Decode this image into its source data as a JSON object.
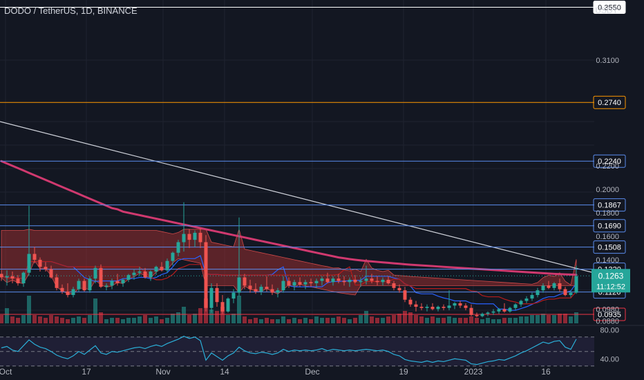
{
  "header": {
    "title": "DODO / TetherUS, 1D, BINANCE"
  },
  "currency": "USDT",
  "chart_data": {
    "type": "candlestick",
    "y_ticks": [
      "0.3100",
      "0.2200",
      "0.2000",
      "0.1800",
      "0.1600",
      "0.1400",
      "0.0980",
      "0.0880"
    ],
    "x_ticks": [
      "Oct",
      "17",
      "Nov",
      "14",
      "Dec",
      "19",
      "2023",
      "16"
    ],
    "levels": [
      {
        "value": 0.355,
        "label": "0.3550",
        "color": "#ffffff"
      },
      {
        "value": 0.274,
        "label": "0.2740",
        "color": "#ff9800"
      },
      {
        "value": 0.224,
        "label": "0.2240",
        "color": "#5b8def"
      },
      {
        "value": 0.1867,
        "label": "0.1867",
        "color": "#5b8def"
      },
      {
        "value": 0.169,
        "label": "0.1690",
        "color": "#5b8def"
      },
      {
        "value": 0.1508,
        "label": "0.1508",
        "color": "#5b8def"
      },
      {
        "value": 0.132,
        "label": "0.1320",
        "color": "#5b8def"
      },
      {
        "value": 0.1126,
        "label": "0.1126",
        "color": "#5b8def"
      },
      {
        "value": 0.0935,
        "label": "0.0935",
        "color": "#f23645"
      }
    ],
    "price": {
      "value": 0.1263,
      "label": "0.1263",
      "countdown": "11:12:52",
      "color": "#26a69a"
    },
    "rsi": {
      "ticks": [
        "80.00",
        "40.00"
      ]
    },
    "candles": [
      [
        0.128,
        0.131,
        0.122,
        0.125
      ],
      [
        0.125,
        0.131,
        0.118,
        0.126
      ],
      [
        0.126,
        0.13,
        0.12,
        0.124
      ],
      [
        0.124,
        0.127,
        0.118,
        0.12
      ],
      [
        0.12,
        0.13,
        0.117,
        0.129
      ],
      [
        0.129,
        0.186,
        0.126,
        0.145
      ],
      [
        0.145,
        0.151,
        0.137,
        0.14
      ],
      [
        0.14,
        0.142,
        0.13,
        0.134
      ],
      [
        0.134,
        0.138,
        0.13,
        0.132
      ],
      [
        0.132,
        0.135,
        0.124,
        0.125
      ],
      [
        0.125,
        0.128,
        0.114,
        0.116
      ],
      [
        0.116,
        0.119,
        0.111,
        0.113
      ],
      [
        0.113,
        0.12,
        0.108,
        0.11
      ],
      [
        0.11,
        0.117,
        0.108,
        0.115
      ],
      [
        0.115,
        0.124,
        0.113,
        0.122
      ],
      [
        0.122,
        0.124,
        0.113,
        0.114
      ],
      [
        0.114,
        0.126,
        0.112,
        0.124
      ],
      [
        0.124,
        0.135,
        0.12,
        0.133
      ],
      [
        0.133,
        0.136,
        0.116,
        0.117
      ],
      [
        0.117,
        0.12,
        0.114,
        0.118
      ],
      [
        0.118,
        0.124,
        0.115,
        0.122
      ],
      [
        0.122,
        0.128,
        0.118,
        0.12
      ],
      [
        0.12,
        0.124,
        0.117,
        0.123
      ],
      [
        0.123,
        0.128,
        0.121,
        0.127
      ],
      [
        0.127,
        0.132,
        0.123,
        0.129
      ],
      [
        0.129,
        0.134,
        0.126,
        0.13
      ],
      [
        0.13,
        0.133,
        0.124,
        0.125
      ],
      [
        0.125,
        0.131,
        0.122,
        0.13
      ],
      [
        0.13,
        0.135,
        0.127,
        0.134
      ],
      [
        0.134,
        0.138,
        0.13,
        0.131
      ],
      [
        0.131,
        0.141,
        0.129,
        0.139
      ],
      [
        0.139,
        0.147,
        0.135,
        0.146
      ],
      [
        0.146,
        0.157,
        0.143,
        0.155
      ],
      [
        0.155,
        0.189,
        0.147,
        0.162
      ],
      [
        0.162,
        0.166,
        0.15,
        0.157
      ],
      [
        0.157,
        0.165,
        0.151,
        0.163
      ],
      [
        0.163,
        0.167,
        0.15,
        0.155
      ],
      [
        0.155,
        0.161,
        0.096,
        0.099
      ],
      [
        0.099,
        0.12,
        0.095,
        0.116
      ],
      [
        0.116,
        0.12,
        0.1,
        0.104
      ],
      [
        0.104,
        0.11,
        0.094,
        0.096
      ],
      [
        0.096,
        0.108,
        0.095,
        0.107
      ],
      [
        0.107,
        0.115,
        0.103,
        0.112
      ],
      [
        0.112,
        0.176,
        0.109,
        0.125
      ],
      [
        0.125,
        0.128,
        0.115,
        0.118
      ],
      [
        0.118,
        0.123,
        0.112,
        0.115
      ],
      [
        0.115,
        0.12,
        0.111,
        0.113
      ],
      [
        0.113,
        0.119,
        0.11,
        0.117
      ],
      [
        0.117,
        0.126,
        0.113,
        0.115
      ],
      [
        0.115,
        0.119,
        0.11,
        0.112
      ],
      [
        0.112,
        0.116,
        0.108,
        0.114
      ],
      [
        0.114,
        0.126,
        0.112,
        0.122
      ],
      [
        0.122,
        0.125,
        0.116,
        0.118
      ],
      [
        0.118,
        0.123,
        0.114,
        0.121
      ],
      [
        0.121,
        0.125,
        0.117,
        0.119
      ],
      [
        0.119,
        0.123,
        0.115,
        0.121
      ],
      [
        0.121,
        0.124,
        0.117,
        0.12
      ],
      [
        0.12,
        0.124,
        0.116,
        0.122
      ],
      [
        0.122,
        0.126,
        0.118,
        0.124
      ],
      [
        0.124,
        0.129,
        0.12,
        0.121
      ],
      [
        0.121,
        0.126,
        0.118,
        0.124
      ],
      [
        0.124,
        0.128,
        0.12,
        0.122
      ],
      [
        0.122,
        0.126,
        0.118,
        0.121
      ],
      [
        0.121,
        0.125,
        0.117,
        0.123
      ],
      [
        0.123,
        0.127,
        0.12,
        0.121
      ],
      [
        0.121,
        0.125,
        0.117,
        0.122
      ],
      [
        0.122,
        0.135,
        0.119,
        0.124
      ],
      [
        0.124,
        0.128,
        0.12,
        0.122
      ],
      [
        0.122,
        0.126,
        0.118,
        0.121
      ],
      [
        0.121,
        0.125,
        0.118,
        0.123
      ],
      [
        0.123,
        0.126,
        0.119,
        0.12
      ],
      [
        0.12,
        0.122,
        0.114,
        0.116
      ],
      [
        0.116,
        0.119,
        0.112,
        0.114
      ],
      [
        0.114,
        0.117,
        0.104,
        0.106
      ],
      [
        0.106,
        0.108,
        0.1,
        0.102
      ],
      [
        0.102,
        0.105,
        0.096,
        0.1
      ],
      [
        0.1,
        0.103,
        0.097,
        0.099
      ],
      [
        0.099,
        0.102,
        0.096,
        0.1
      ],
      [
        0.1,
        0.103,
        0.097,
        0.098
      ],
      [
        0.098,
        0.101,
        0.096,
        0.1
      ],
      [
        0.1,
        0.102,
        0.097,
        0.099
      ],
      [
        0.099,
        0.114,
        0.097,
        0.101
      ],
      [
        0.101,
        0.104,
        0.098,
        0.103
      ],
      [
        0.103,
        0.105,
        0.099,
        0.101
      ],
      [
        0.101,
        0.103,
        0.097,
        0.099
      ],
      [
        0.099,
        0.102,
        0.092,
        0.093
      ],
      [
        0.093,
        0.095,
        0.091,
        0.092
      ],
      [
        0.092,
        0.095,
        0.091,
        0.094
      ],
      [
        0.094,
        0.096,
        0.092,
        0.095
      ],
      [
        0.095,
        0.098,
        0.093,
        0.096
      ],
      [
        0.096,
        0.099,
        0.094,
        0.098
      ],
      [
        0.098,
        0.103,
        0.095,
        0.096
      ],
      [
        0.096,
        0.1,
        0.095,
        0.099
      ],
      [
        0.099,
        0.103,
        0.097,
        0.102
      ],
      [
        0.102,
        0.106,
        0.1,
        0.105
      ],
      [
        0.105,
        0.109,
        0.103,
        0.107
      ],
      [
        0.107,
        0.112,
        0.105,
        0.11
      ],
      [
        0.11,
        0.116,
        0.108,
        0.114
      ],
      [
        0.114,
        0.12,
        0.112,
        0.118
      ],
      [
        0.118,
        0.122,
        0.115,
        0.116
      ],
      [
        0.116,
        0.121,
        0.114,
        0.12
      ],
      [
        0.12,
        0.124,
        0.113,
        0.115
      ],
      [
        0.115,
        0.117,
        0.109,
        0.11
      ],
      [
        0.11,
        0.114,
        0.108,
        0.112
      ],
      [
        0.112,
        0.135,
        0.111,
        0.126
      ]
    ],
    "volume": [
      0.3,
      0.55,
      0.25,
      0.2,
      0.3,
      1.0,
      0.3,
      0.25,
      0.2,
      0.3,
      0.25,
      0.2,
      0.15,
      0.2,
      0.25,
      0.2,
      0.3,
      0.9,
      0.4,
      0.15,
      0.2,
      0.2,
      0.15,
      0.2,
      0.2,
      0.25,
      0.3,
      0.2,
      0.25,
      0.15,
      0.2,
      0.35,
      0.4,
      0.6,
      0.3,
      0.35,
      0.55,
      0.9,
      0.5,
      0.45,
      0.6,
      0.3,
      0.35,
      1.0,
      0.25,
      0.15,
      0.2,
      0.15,
      0.2,
      0.15,
      0.15,
      0.25,
      0.15,
      0.2,
      0.15,
      0.2,
      0.15,
      0.25,
      0.2,
      0.2,
      0.2,
      0.25,
      0.2,
      0.15,
      0.2,
      0.3,
      0.45,
      0.25,
      0.2,
      0.2,
      0.25,
      0.3,
      0.35,
      0.45,
      0.4,
      0.3,
      0.25,
      0.2,
      0.25,
      0.2,
      0.2,
      0.25,
      0.2,
      0.2,
      0.2,
      0.25,
      0.2,
      0.15,
      0.2,
      0.15,
      0.15,
      0.2,
      0.2,
      0.2,
      0.25,
      0.25,
      0.3,
      0.3,
      0.35,
      0.3,
      0.3,
      0.35,
      0.35,
      0.25,
      0.4
    ],
    "ma": [
      0.224,
      0.222,
      0.22,
      0.218,
      0.216,
      0.214,
      0.212,
      0.21,
      0.208,
      0.206,
      0.204,
      0.202,
      0.2,
      0.198,
      0.196,
      0.194,
      0.192,
      0.19,
      0.188,
      0.186,
      0.184,
      0.183,
      0.181,
      0.18,
      0.179,
      0.178,
      0.177,
      0.176,
      0.175,
      0.174,
      0.173,
      0.172,
      0.171,
      0.17,
      0.169,
      0.168,
      0.167,
      0.166,
      0.165,
      0.164,
      0.163,
      0.162,
      0.161,
      0.16,
      0.159,
      0.158,
      0.157,
      0.156,
      0.155,
      0.154,
      0.153,
      0.152,
      0.151,
      0.15,
      0.149,
      0.148,
      0.147,
      0.146,
      0.145,
      0.144,
      0.143,
      0.142,
      0.1413,
      0.1406,
      0.14,
      0.1395,
      0.139,
      0.1386,
      0.1382,
      0.1378,
      0.1374,
      0.137,
      0.1366,
      0.1362,
      0.1358,
      0.1355,
      0.1352,
      0.1349,
      0.1346,
      0.1343,
      0.134,
      0.1337,
      0.1334,
      0.1331,
      0.1328,
      0.1325,
      0.1322,
      0.1319,
      0.1316,
      0.1313,
      0.131,
      0.1307,
      0.1304,
      0.1301,
      0.1298,
      0.1295,
      0.1292,
      0.1289,
      0.1286,
      0.1283,
      0.128,
      0.1278,
      0.1276,
      0.1274,
      0.1272
    ],
    "rsi_values": [
      55,
      57,
      52,
      50,
      58,
      66,
      60,
      56,
      54,
      50,
      45,
      42,
      40,
      44,
      50,
      46,
      52,
      58,
      48,
      46,
      50,
      49,
      51,
      53,
      55,
      56,
      54,
      57,
      59,
      57,
      61,
      64,
      67,
      71,
      68,
      70,
      65,
      38,
      48,
      43,
      38,
      44,
      48,
      56,
      51,
      48,
      47,
      49,
      48,
      46,
      48,
      53,
      50,
      52,
      51,
      52,
      51,
      52,
      54,
      51,
      53,
      52,
      51,
      52,
      51,
      52,
      53,
      52,
      51,
      52,
      50,
      46,
      44,
      39,
      37,
      36,
      35,
      37,
      35,
      37,
      36,
      38,
      40,
      39,
      38,
      33,
      32,
      34,
      36,
      37,
      39,
      38,
      41,
      44,
      48,
      51,
      55,
      59,
      63,
      61,
      64,
      65,
      56,
      53,
      67
    ]
  }
}
